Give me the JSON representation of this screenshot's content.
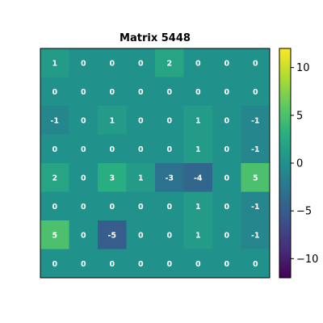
{
  "chart_data": {
    "type": "heatmap",
    "title": "Matrix 5448",
    "values": [
      [
        1,
        0,
        0,
        0,
        2,
        0,
        0,
        0
      ],
      [
        0,
        0,
        0,
        0,
        0,
        0,
        0,
        0
      ],
      [
        -1,
        0,
        1,
        0,
        0,
        1,
        0,
        -1
      ],
      [
        0,
        0,
        0,
        0,
        0,
        1,
        0,
        -1
      ],
      [
        2,
        0,
        3,
        1,
        -3,
        -4,
        0,
        5
      ],
      [
        0,
        0,
        0,
        0,
        0,
        1,
        0,
        -1
      ],
      [
        5,
        0,
        -5,
        0,
        0,
        1,
        0,
        -1
      ],
      [
        0,
        0,
        0,
        0,
        0,
        0,
        0,
        0
      ]
    ],
    "colorscale": "viridis",
    "clim": [
      -12,
      12
    ],
    "colorbar_ticks": [
      {
        "value": 10,
        "label": "10"
      },
      {
        "value": 5,
        "label": "5"
      },
      {
        "value": 0,
        "label": "0"
      },
      {
        "value": -5,
        "label": "−5"
      },
      {
        "value": -10,
        "label": "−10"
      }
    ],
    "xlabel": "",
    "ylabel": "",
    "grid": false
  }
}
